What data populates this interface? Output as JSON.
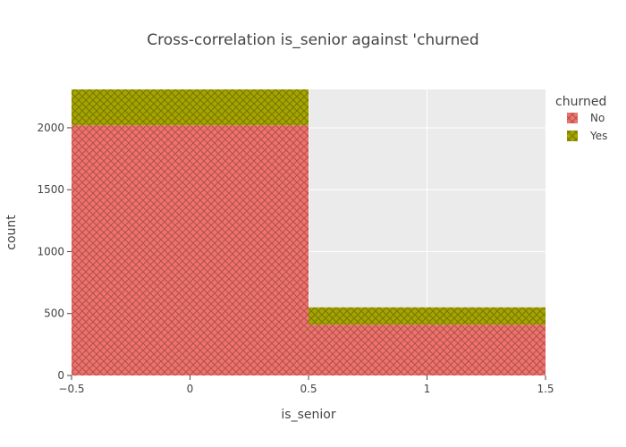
{
  "chart_data": {
    "type": "bar",
    "title": "Cross-correlation is_senior against 'churned",
    "xlabel": "is_senior",
    "ylabel": "count",
    "xlim": [
      -0.5,
      1.5
    ],
    "ylim": [
      0,
      2310
    ],
    "x_ticks": [
      -0.5,
      0,
      0.5,
      1,
      1.5
    ],
    "x_tick_labels": [
      "−0.5",
      "0",
      "0.5",
      "1",
      "1.5"
    ],
    "y_ticks": [
      0,
      500,
      1000,
      1500,
      2000
    ],
    "y_tick_labels": [
      "0",
      "500",
      "1000",
      "1500",
      "2000"
    ],
    "barmode": "stack",
    "grid": true,
    "bins": [
      {
        "x0": -0.5,
        "x1": 0.5
      },
      {
        "x0": 0.5,
        "x1": 1.5
      }
    ],
    "series": [
      {
        "name": "No",
        "values": [
          2020,
          410
        ],
        "color": "#f0726c",
        "pattern": "crosshatch"
      },
      {
        "name": "Yes",
        "values": [
          290,
          140
        ],
        "color": "#a5a400",
        "pattern": "crosshatch"
      }
    ],
    "legend": {
      "title": "churned",
      "position": "top-right"
    },
    "plot_background": "#ebebeb",
    "grid_color": "#ffffff"
  }
}
